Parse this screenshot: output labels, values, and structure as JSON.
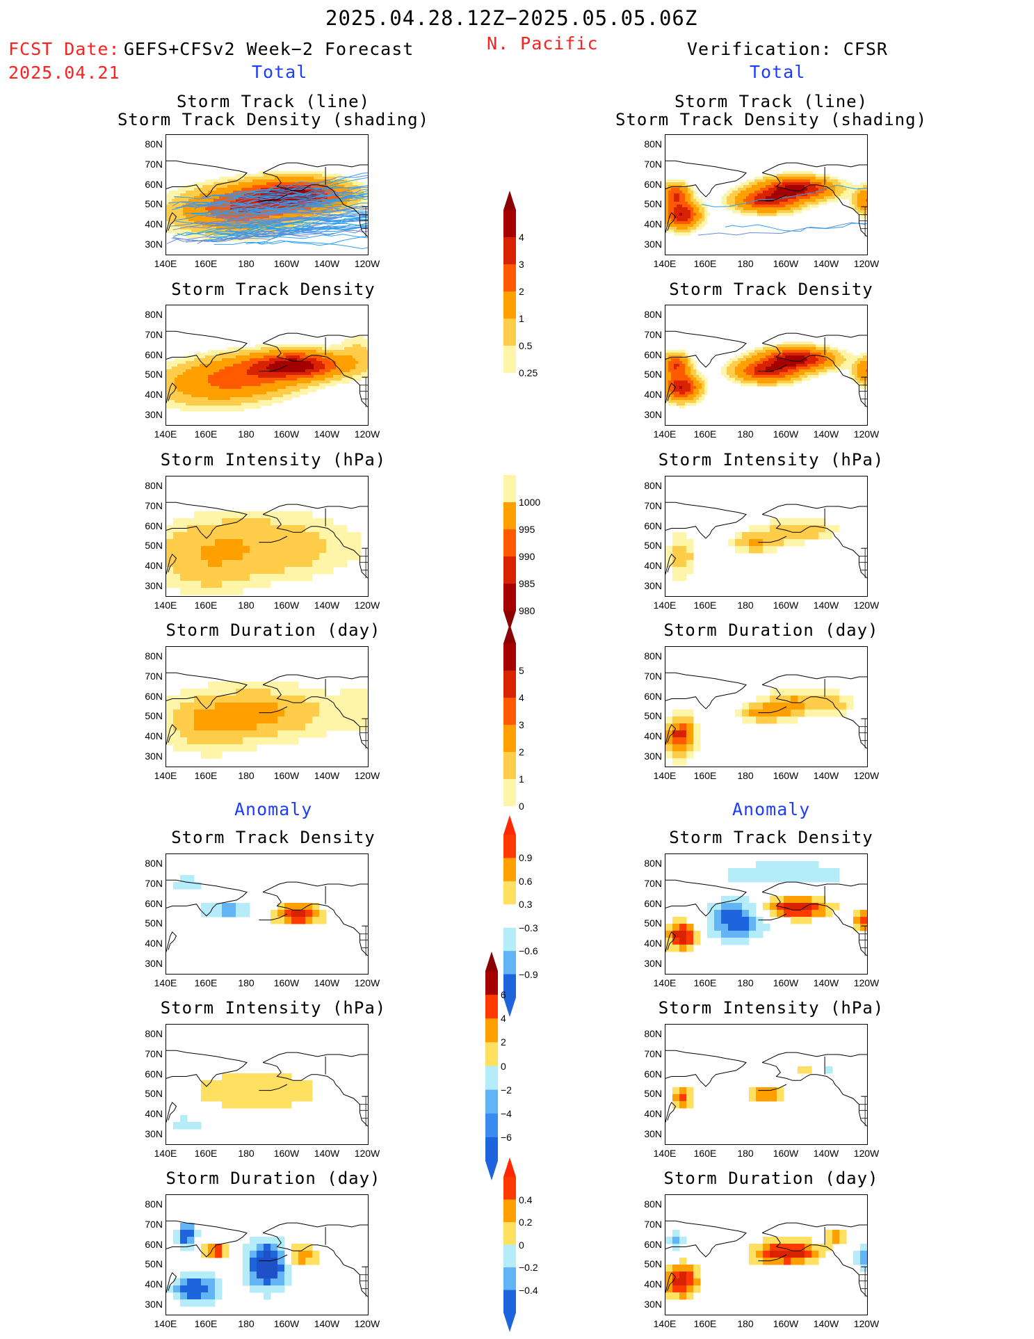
{
  "header": {
    "period": "2025.04.28.12Z−2025.05.05.06Z",
    "fcst_label": "FCST Date:",
    "fcst_model": "GEFS+CFSv2 Week−2 Forecast",
    "fcst_date": "2025.04.21",
    "region": "N. Pacific",
    "verification": "Verification: CFSR",
    "left_total": "Total",
    "right_total": "Total",
    "left_anomaly": "Anomaly",
    "right_anomaly": "Anomaly"
  },
  "panel_titles": {
    "track_line": "Storm Track (line)",
    "track_shading": "Storm Track Density (shading)",
    "density": "Storm Track Density",
    "intensity": "Storm Intensity (hPa)",
    "duration": "Storm Duration (day)"
  },
  "axes": {
    "x_ticks": [
      "140E",
      "160E",
      "180",
      "160W",
      "140W",
      "120W"
    ],
    "y_ticks": [
      "80N",
      "70N",
      "60N",
      "50N",
      "40N",
      "30N"
    ]
  },
  "colorbars": {
    "density_total": {
      "labels": [
        "4",
        "3",
        "2",
        "1",
        "0.5",
        "0.25"
      ],
      "colors": [
        "#a50000",
        "#d92200",
        "#ff5a00",
        "#ffa000",
        "#ffcd4a",
        "#fff5a8"
      ]
    },
    "intensity_total": {
      "labels": [
        "1000",
        "995",
        "990",
        "985",
        "980"
      ],
      "colors": [
        "#fff5a8",
        "#ffa000",
        "#ff5a00",
        "#d92200",
        "#a50000"
      ]
    },
    "duration_total": {
      "labels": [
        "5",
        "4",
        "3",
        "2",
        "1",
        "0"
      ],
      "colors": [
        "#a50000",
        "#d92200",
        "#ff5a00",
        "#ffa000",
        "#ffcd4a",
        "#fff5a8"
      ]
    },
    "density_anom": {
      "labels": [
        "0.9",
        "0.6",
        "0.3",
        "−0.3",
        "−0.6",
        "−0.9"
      ],
      "colors": [
        "#ff3a00",
        "#ffa000",
        "#ffe060",
        "#ffffff",
        "#b4ecfa",
        "#62b4f4",
        "#1e64dc"
      ]
    },
    "intensity_anom": {
      "labels": [
        "6",
        "4",
        "2",
        "0",
        "−2",
        "−4",
        "−6"
      ],
      "colors": [
        "#a50000",
        "#ff3a00",
        "#ffa000",
        "#ffe060",
        "#b4ecfa",
        "#62b4f4",
        "#3a8cf0",
        "#1e64dc"
      ]
    },
    "duration_anom": {
      "labels": [
        "0.4",
        "0.2",
        "0",
        "−0.2",
        "−0.4"
      ],
      "colors": [
        "#ff3a00",
        "#ffa000",
        "#ffe060",
        "#b4ecfa",
        "#62b4f4",
        "#1e64dc"
      ]
    }
  },
  "chart_data": [
    {
      "type": "heatmap",
      "title": "Storm Track (line) / Storm Track Density (shading)",
      "side": "forecast",
      "section": "Total",
      "xlim": [
        140,
        240
      ],
      "ylim": [
        25,
        85
      ],
      "features": {
        "max_center_lon": 205,
        "max_center_lat": 55
      }
    },
    {
      "type": "heatmap",
      "title": "Storm Track (line) / Storm Track Density (shading)",
      "side": "verification",
      "section": "Total",
      "xlim": [
        140,
        240
      ],
      "ylim": [
        25,
        85
      ]
    },
    {
      "type": "heatmap",
      "title": "Storm Track Density",
      "side": "forecast",
      "section": "Total",
      "xlim": [
        140,
        240
      ],
      "ylim": [
        25,
        85
      ]
    },
    {
      "type": "heatmap",
      "title": "Storm Track Density",
      "side": "verification",
      "section": "Total",
      "xlim": [
        140,
        240
      ],
      "ylim": [
        25,
        85
      ]
    },
    {
      "type": "heatmap",
      "title": "Storm Intensity (hPa)",
      "side": "forecast",
      "section": "Total",
      "xlim": [
        140,
        240
      ],
      "ylim": [
        25,
        85
      ]
    },
    {
      "type": "heatmap",
      "title": "Storm Intensity (hPa)",
      "side": "verification",
      "section": "Total",
      "xlim": [
        140,
        240
      ],
      "ylim": [
        25,
        85
      ]
    },
    {
      "type": "heatmap",
      "title": "Storm Duration (day)",
      "side": "forecast",
      "section": "Total",
      "xlim": [
        140,
        240
      ],
      "ylim": [
        25,
        85
      ]
    },
    {
      "type": "heatmap",
      "title": "Storm Duration (day)",
      "side": "verification",
      "section": "Total",
      "xlim": [
        140,
        240
      ],
      "ylim": [
        25,
        85
      ]
    },
    {
      "type": "heatmap",
      "title": "Storm Track Density",
      "side": "forecast",
      "section": "Anomaly",
      "xlim": [
        140,
        240
      ],
      "ylim": [
        25,
        85
      ]
    },
    {
      "type": "heatmap",
      "title": "Storm Track Density",
      "side": "verification",
      "section": "Anomaly",
      "xlim": [
        140,
        240
      ],
      "ylim": [
        25,
        85
      ]
    },
    {
      "type": "heatmap",
      "title": "Storm Intensity (hPa)",
      "side": "forecast",
      "section": "Anomaly",
      "xlim": [
        140,
        240
      ],
      "ylim": [
        25,
        85
      ]
    },
    {
      "type": "heatmap",
      "title": "Storm Intensity (hPa)",
      "side": "verification",
      "section": "Anomaly",
      "xlim": [
        140,
        240
      ],
      "ylim": [
        25,
        85
      ]
    },
    {
      "type": "heatmap",
      "title": "Storm Duration (day)",
      "side": "forecast",
      "section": "Anomaly",
      "xlim": [
        140,
        240
      ],
      "ylim": [
        25,
        85
      ]
    },
    {
      "type": "heatmap",
      "title": "Storm Duration (day)",
      "side": "verification",
      "section": "Anomaly",
      "xlim": [
        140,
        240
      ],
      "ylim": [
        25,
        85
      ]
    }
  ]
}
